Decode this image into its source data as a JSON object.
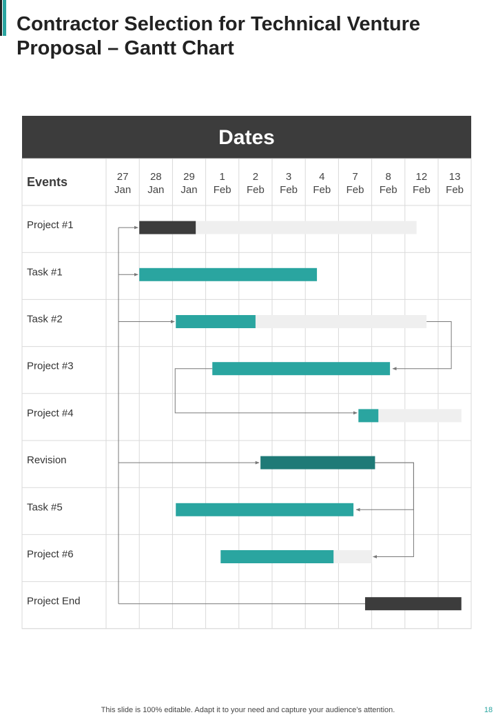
{
  "slide": {
    "title": "Contractor Selection for Technical Venture Proposal – Gantt Chart",
    "footer": "This slide is 100% editable. Adapt it to your need and capture your audience’s attention.",
    "page_number": "18"
  },
  "colors": {
    "accent": "#2aa5a0",
    "dark_teal": "#1f7a77",
    "dark": "#3c3c3c",
    "track": "#efefef"
  },
  "chart_data": {
    "type": "gantt",
    "header": "Dates",
    "row_header": "Events",
    "dates": [
      {
        "day": "27",
        "month": "Jan"
      },
      {
        "day": "28",
        "month": "Jan"
      },
      {
        "day": "29",
        "month": "Jan"
      },
      {
        "day": "1",
        "month": "Feb"
      },
      {
        "day": "2",
        "month": "Feb"
      },
      {
        "day": "3",
        "month": "Feb"
      },
      {
        "day": "4",
        "month": "Feb"
      },
      {
        "day": "7",
        "month": "Feb"
      },
      {
        "day": "8",
        "month": "Feb"
      },
      {
        "day": "12",
        "month": "Feb"
      },
      {
        "day": "13",
        "month": "Feb"
      }
    ],
    "events": [
      {
        "name": "Project #1",
        "start": 1.0,
        "end": 2.7,
        "track_end": 9.35,
        "color": "dark"
      },
      {
        "name": "Task #1",
        "start": 1.0,
        "end": 6.35,
        "color": "accent"
      },
      {
        "name": "Task #2",
        "start": 2.1,
        "end": 4.5,
        "track_end": 9.65,
        "color": "accent"
      },
      {
        "name": "Project #3",
        "start": 3.2,
        "end": 8.55,
        "color": "accent"
      },
      {
        "name": "Project #4",
        "start": 7.6,
        "end": 8.2,
        "track_end": 10.7,
        "color": "accent"
      },
      {
        "name": "Revision",
        "start": 4.65,
        "end": 8.1,
        "color": "dark_teal"
      },
      {
        "name": "Task #5",
        "start": 2.1,
        "end": 7.45,
        "color": "accent"
      },
      {
        "name": "Project #6",
        "start": 3.45,
        "end": 6.85,
        "track_end": 8.0,
        "color": "accent"
      },
      {
        "name": "Project End",
        "start": 7.8,
        "end": 10.7,
        "color": "dark"
      }
    ],
    "dependencies": [
      {
        "from": "trunk",
        "to": 0
      },
      {
        "from": "trunk",
        "to": 1
      },
      {
        "from": "trunk",
        "to": 2
      },
      {
        "from": "trunk",
        "to": 5
      },
      {
        "from": 2,
        "to": 3
      },
      {
        "from": 3,
        "to": 4
      },
      {
        "from": 5,
        "to": 6
      },
      {
        "from": 5,
        "to": 7
      },
      {
        "from": "trunk",
        "to": 8
      }
    ]
  }
}
